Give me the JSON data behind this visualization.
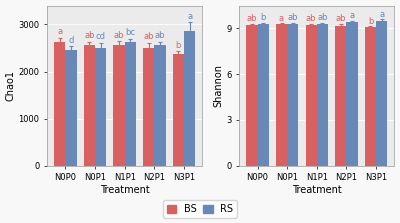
{
  "categories": [
    "N0P0",
    "N0P1",
    "N1P1",
    "N2P1",
    "N3P1"
  ],
  "chao1_BS": [
    2630,
    2560,
    2555,
    2490,
    2370
  ],
  "chao1_RS": [
    2455,
    2500,
    2630,
    2555,
    2850
  ],
  "chao1_BS_err": [
    85,
    75,
    85,
    125,
    65
  ],
  "chao1_RS_err": [
    85,
    115,
    65,
    75,
    195
  ],
  "chao1_BS_labels": [
    "a",
    "ab",
    "ab",
    "ab",
    "b"
  ],
  "chao1_RS_labels": [
    "d",
    "cd",
    "bc",
    "ab",
    "a"
  ],
  "chao1_ylim": [
    0,
    3400
  ],
  "chao1_yticks": [
    0,
    1000,
    2000,
    3000
  ],
  "chao1_ylabel": "Chao1",
  "shannon_BS": [
    9.25,
    9.27,
    9.22,
    9.16,
    9.08
  ],
  "shannon_RS": [
    9.26,
    9.3,
    9.3,
    9.4,
    9.46
  ],
  "shannon_BS_err": [
    0.07,
    0.06,
    0.08,
    0.14,
    0.07
  ],
  "shannon_RS_err": [
    0.09,
    0.07,
    0.06,
    0.11,
    0.14
  ],
  "shannon_BS_labels": [
    "ab",
    "a",
    "ab",
    "ab",
    "b"
  ],
  "shannon_RS_labels": [
    "b",
    "ab",
    "ab",
    "a",
    "a"
  ],
  "shannon_ylim": [
    0,
    10.5
  ],
  "shannon_yticks": [
    0,
    3,
    6,
    9
  ],
  "shannon_ylabel": "Shannon",
  "xlabel": "Treatment",
  "color_BS": "#D96060",
  "color_RS": "#6888B8",
  "bg_color": "#EBEBEB",
  "fig_bg": "#F8F8F8",
  "bar_width": 0.38,
  "legend_labels": [
    "BS",
    "RS"
  ],
  "label_fontsize": 6.0,
  "axis_fontsize": 7.0,
  "tick_fontsize": 6.0
}
